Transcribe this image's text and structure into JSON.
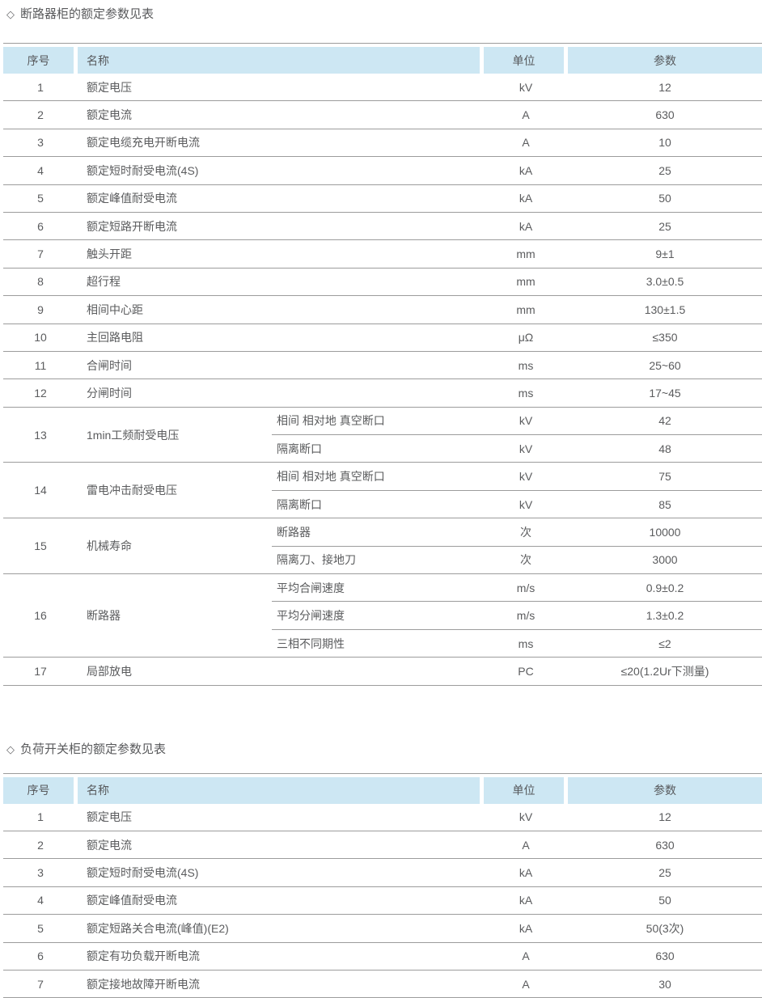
{
  "colors": {
    "header_bg": "#cde7f3",
    "row_line": "#9c9c9c",
    "text": "#58595b",
    "page_bg": "#ffffff"
  },
  "s1": {
    "bullet": "◇",
    "title": "断路器柜的额定参数见表",
    "columns": {
      "no": "序号",
      "name": "名称",
      "unit": "单位",
      "param": "参数"
    },
    "rows": [
      {
        "no": "1",
        "name": "额定电压",
        "unit": "kV",
        "param": "12"
      },
      {
        "no": "2",
        "name": "额定电流",
        "unit": "A",
        "param": "630"
      },
      {
        "no": "3",
        "name": "额定电缆充电开断电流",
        "unit": "A",
        "param": "10"
      },
      {
        "no": "4",
        "name": "额定短时耐受电流(4S)",
        "unit": "kA",
        "param": "25"
      },
      {
        "no": "5",
        "name": "额定峰值耐受电流",
        "unit": "kA",
        "param": "50"
      },
      {
        "no": "6",
        "name": "额定短路开断电流",
        "unit": "kA",
        "param": "25"
      },
      {
        "no": "7",
        "name": "触头开距",
        "unit": "mm",
        "param": "9±1"
      },
      {
        "no": "8",
        "name": "超行程",
        "unit": "mm",
        "param": "3.0±0.5"
      },
      {
        "no": "9",
        "name": "相间中心距",
        "unit": "mm",
        "param": "130±1.5"
      },
      {
        "no": "10",
        "name": "主回路电阻",
        "unit": "μΩ",
        "param": "≤350"
      },
      {
        "no": "11",
        "name": "合闸时间",
        "unit": "ms",
        "param": "25~60"
      },
      {
        "no": "12",
        "name": "分闸时间",
        "unit": "ms",
        "param": "17~45"
      },
      {
        "no": "13",
        "name": "1min工频耐受电压",
        "sub": [
          {
            "label": "相间 相对地 真空断口",
            "unit": "kV",
            "param": "42"
          },
          {
            "label": "隔离断口",
            "unit": "kV",
            "param": "48"
          }
        ]
      },
      {
        "no": "14",
        "name": "雷电冲击耐受电压",
        "sub": [
          {
            "label": "相间 相对地 真空断口",
            "unit": "kV",
            "param": "75"
          },
          {
            "label": "隔离断口",
            "unit": "kV",
            "param": "85"
          }
        ]
      },
      {
        "no": "15",
        "name": "机械寿命",
        "sub": [
          {
            "label": "断路器",
            "unit": "次",
            "param": "10000"
          },
          {
            "label": "隔离刀、接地刀",
            "unit": "次",
            "param": "3000"
          }
        ]
      },
      {
        "no": "16",
        "name": "断路器",
        "sub": [
          {
            "label": "平均合闸速度",
            "unit": "m/s",
            "param": "0.9±0.2"
          },
          {
            "label": "平均分闸速度",
            "unit": "m/s",
            "param": "1.3±0.2"
          },
          {
            "label": "三相不同期性",
            "unit": "ms",
            "param": "≤2"
          }
        ]
      },
      {
        "no": "17",
        "name": "局部放电",
        "unit": "PC",
        "param": "≤20(1.2Ur下测量)"
      }
    ]
  },
  "s2": {
    "bullet": "◇",
    "title": "负荷开关柜的额定参数见表",
    "columns": {
      "no": "序号",
      "name": "名称",
      "unit": "单位",
      "param": "参数"
    },
    "rows": [
      {
        "no": "1",
        "name": "额定电压",
        "unit": "kV",
        "param": "12"
      },
      {
        "no": "2",
        "name": "额定电流",
        "unit": "A",
        "param": "630"
      },
      {
        "no": "3",
        "name": "额定短时耐受电流(4S)",
        "unit": "kA",
        "param": "25"
      },
      {
        "no": "4",
        "name": "额定峰值耐受电流",
        "unit": "kA",
        "param": "50"
      },
      {
        "no": "5",
        "name": "额定短路关合电流(峰值)(E2)",
        "unit": "kA",
        "param": "50(3次)"
      },
      {
        "no": "6",
        "name": "额定有功负载开断电流",
        "unit": "A",
        "param": "630"
      },
      {
        "no": "7",
        "name": "额定接地故障开断电流",
        "unit": "A",
        "param": "30"
      }
    ]
  }
}
